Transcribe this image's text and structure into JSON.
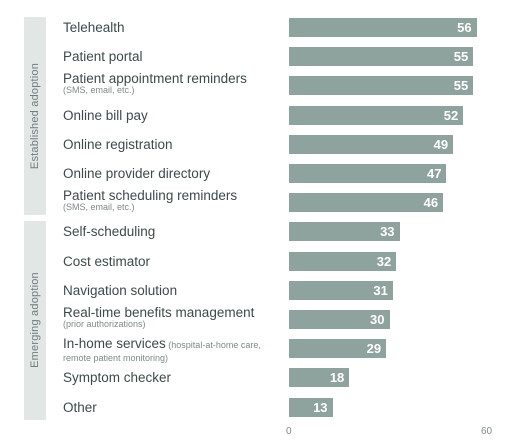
{
  "chart_data": {
    "type": "bar",
    "orientation": "horizontal",
    "groups": [
      {
        "name": "Established adoption",
        "from": 0,
        "to": 6
      },
      {
        "name": "Emerging adoption",
        "from": 7,
        "to": 13
      }
    ],
    "items": [
      {
        "label": "Telehealth",
        "sub": "",
        "value": 56
      },
      {
        "label": "Patient portal",
        "sub": "",
        "value": 55
      },
      {
        "label": "Patient appointment reminders",
        "sub": "(SMS, email, etc.)",
        "value": 55
      },
      {
        "label": "Online bill pay",
        "sub": "",
        "value": 52
      },
      {
        "label": "Online registration",
        "sub": "",
        "value": 49
      },
      {
        "label": "Online provider directory",
        "sub": "",
        "value": 47
      },
      {
        "label": "Patient scheduling reminders",
        "sub": "(SMS, email, etc.)",
        "value": 46
      },
      {
        "label": "Self-scheduling",
        "sub": "",
        "value": 33
      },
      {
        "label": "Cost estimator",
        "sub": "",
        "value": 32
      },
      {
        "label": "Navigation solution",
        "sub": "",
        "value": 31
      },
      {
        "label": "Real-time benefits management",
        "sub": "(prior authorizations)",
        "value": 30
      },
      {
        "label": "In-home services",
        "sub": "(hospital-at-home care, remote patient monitoring)",
        "value": 29
      },
      {
        "label": "Symptom checker",
        "sub": "",
        "value": 18
      },
      {
        "label": "Other",
        "sub": "",
        "value": 13
      }
    ],
    "xlim": [
      0,
      60
    ],
    "xticks": [
      "0",
      "60"
    ],
    "bar_color": "#8fa39e",
    "band_color": "#e2e7e6",
    "grid": false
  }
}
